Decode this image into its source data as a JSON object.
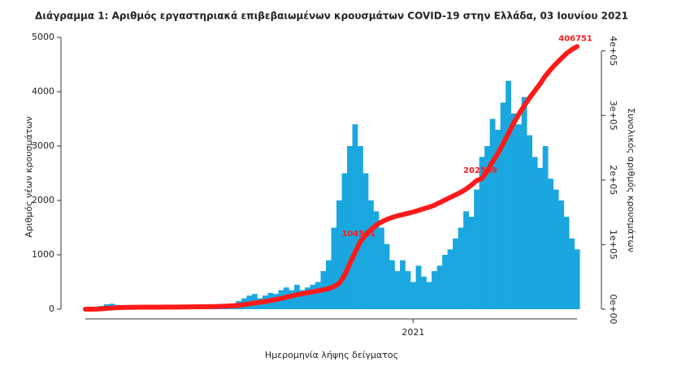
{
  "chart_data": {
    "type": "bar",
    "title": "Διάγραμμα 1: Αριθμός εργαστηριακά επιβεβαιωμένων κρουσμάτων COVID-19 στην Ελλάδα, 03 Ιουνίου 2021",
    "x_label": "Ημερομηνία λήψης δείγματος",
    "y_label": "Αριθμός νέων κρουσμάτων",
    "y2_label": "Συνολικός αριθμός κρουσμάτων",
    "categories": [
      null,
      null,
      null,
      null,
      null,
      null,
      null,
      null,
      null,
      null,
      null,
      null,
      null,
      null,
      null,
      null,
      null,
      null,
      null,
      null,
      null,
      null,
      null,
      null,
      null,
      null,
      null,
      null,
      null,
      null,
      null,
      null,
      null,
      null,
      null,
      null,
      null,
      null,
      null,
      null,
      null,
      null,
      null,
      null,
      null,
      null,
      null,
      null,
      null,
      null,
      null,
      null,
      null,
      null,
      null,
      null,
      null,
      null,
      null,
      null,
      null,
      null,
      "2021",
      null,
      null,
      null,
      null,
      null,
      null,
      null,
      null,
      null,
      null,
      null,
      null,
      null,
      null,
      null,
      null,
      null,
      null,
      null,
      null,
      null,
      null,
      null,
      null,
      null,
      null,
      null,
      null,
      null,
      null,
      null
    ],
    "series": [
      {
        "color": "#1aa7e0",
        "values": [
          0,
          5,
          30,
          60,
          90,
          100,
          80,
          60,
          40,
          20,
          15,
          10,
          10,
          5,
          5,
          10,
          15,
          10,
          10,
          15,
          20,
          20,
          25,
          20,
          30,
          40,
          40,
          60,
          100,
          150,
          200,
          250,
          280,
          200,
          250,
          300,
          280,
          350,
          400,
          350,
          450,
          350,
          400,
          450,
          500,
          700,
          900,
          1500,
          2000,
          2500,
          3000,
          3400,
          3000,
          2500,
          2000,
          1800,
          1500,
          1200,
          900,
          700,
          900,
          700,
          500,
          800,
          600,
          500,
          700,
          800,
          1000,
          1100,
          1300,
          1500,
          1800,
          1700,
          2200,
          2800,
          3000,
          3500,
          3300,
          3800,
          4200,
          3600,
          3400,
          3900,
          3200,
          2800,
          2600,
          3000,
          2400,
          2200,
          2000,
          1700,
          1300,
          1100
        ]
      },
      {
        "color": "#ff1a1a",
        "axis": "y2",
        "type": "line",
        "values": [
          0,
          30,
          200,
          600,
          1200,
          1800,
          2300,
          2700,
          2900,
          3000,
          3050,
          3100,
          3150,
          3180,
          3200,
          3250,
          3300,
          3350,
          3400,
          3500,
          3600,
          3700,
          3800,
          3900,
          4050,
          4300,
          4500,
          4800,
          5300,
          6000,
          7000,
          8300,
          9700,
          10700,
          12000,
          13500,
          14900,
          16600,
          18600,
          20400,
          22600,
          24000,
          25500,
          27000,
          28500,
          30000,
          32000,
          35000,
          40000,
          52000,
          70000,
          88000,
          104581,
          115000,
          123000,
          130000,
          135000,
          139000,
          142000,
          144500,
          146500,
          148500,
          150500,
          153000,
          155500,
          158000,
          161000,
          165000,
          169000,
          173000,
          177000,
          181000,
          186000,
          192000,
          199000,
          202559,
          214000,
          228000,
          241000,
          256000,
          272000,
          288000,
          302000,
          315000,
          327000,
          338000,
          349000,
          361000,
          371000,
          380000,
          388000,
          396000,
          402000,
          406751
        ],
        "value_labels": [
          null,
          null,
          null,
          null,
          null,
          null,
          null,
          null,
          null,
          null,
          null,
          null,
          null,
          null,
          null,
          null,
          null,
          null,
          null,
          null,
          null,
          null,
          null,
          null,
          null,
          null,
          null,
          null,
          null,
          null,
          null,
          null,
          null,
          null,
          null,
          null,
          null,
          null,
          null,
          null,
          null,
          null,
          null,
          null,
          null,
          null,
          null,
          null,
          null,
          null,
          null,
          null,
          "104581",
          null,
          null,
          null,
          null,
          null,
          null,
          null,
          null,
          null,
          null,
          null,
          null,
          null,
          null,
          null,
          null,
          null,
          null,
          null,
          null,
          null,
          null,
          "202559",
          null,
          null,
          null,
          null,
          null,
          null,
          null,
          null,
          null,
          null,
          null,
          null,
          null,
          null,
          null,
          null,
          null,
          "406751"
        ]
      }
    ],
    "ylim": [
      0,
      5000
    ],
    "yticks": [
      0,
      1000,
      2000,
      3000,
      4000,
      5000
    ],
    "y2lim": [
      0,
      421000
    ],
    "y2ticks": [
      {
        "value": 0,
        "label": "0e+00"
      },
      {
        "value": 100000,
        "label": "1e+05"
      },
      {
        "value": 200000,
        "label": "2e+05"
      },
      {
        "value": 300000,
        "label": "3e+05"
      },
      {
        "value": 400000,
        "label": "4e+05"
      }
    ]
  }
}
